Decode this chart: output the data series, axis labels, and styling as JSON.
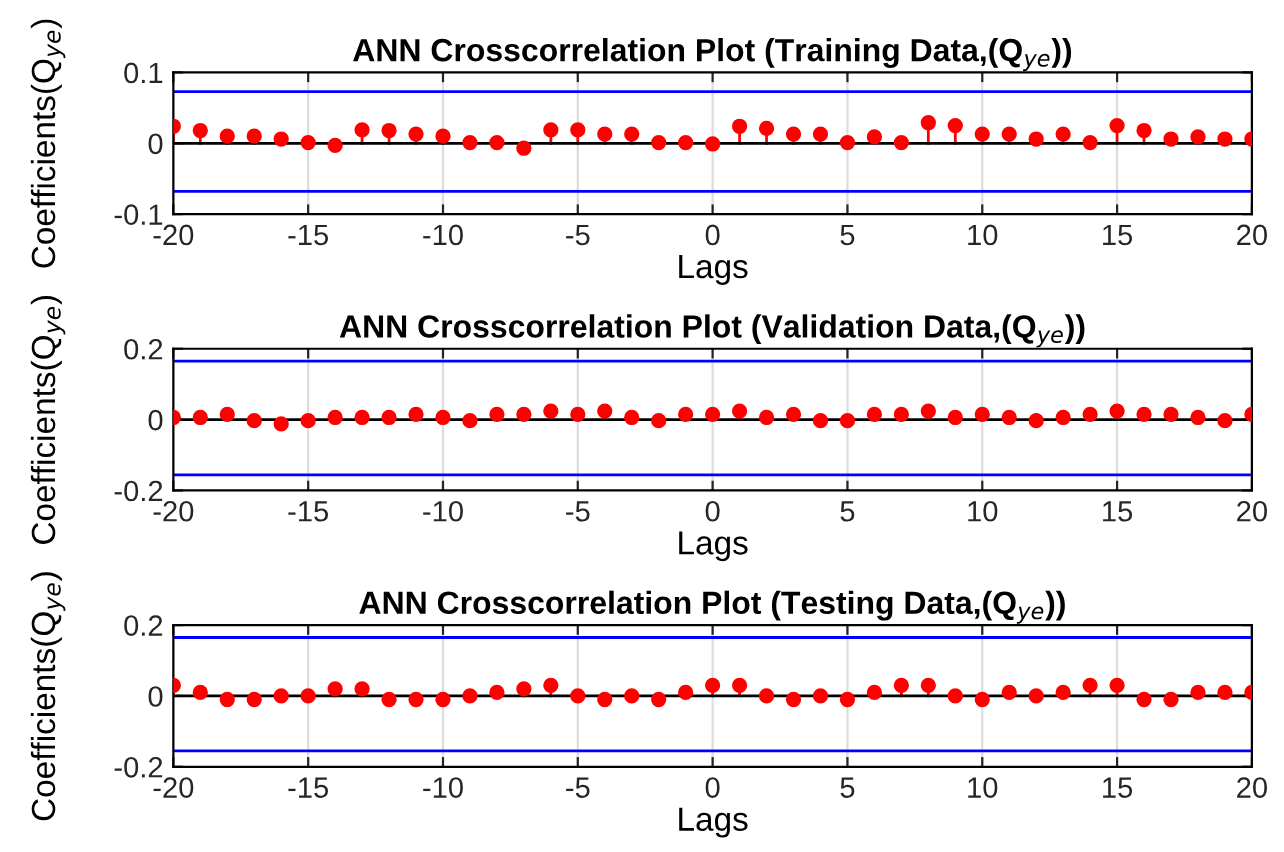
{
  "chart_data": [
    {
      "type": "lollipop",
      "title": "ANN Crosscorrelation Plot (Training Data,(Q$_{ye}$))",
      "xlabel": "Lags",
      "ylabel": "Coefficients(Q$_{ye}$)",
      "x": [
        -20,
        -19,
        -18,
        -17,
        -16,
        -15,
        -14,
        -13,
        -12,
        -11,
        -10,
        -9,
        -8,
        -7,
        -6,
        -5,
        -4,
        -3,
        -2,
        -1,
        0,
        1,
        2,
        3,
        4,
        5,
        6,
        7,
        8,
        9,
        10,
        11,
        12,
        13,
        14,
        15,
        16,
        17,
        18,
        19,
        20
      ],
      "series": [
        {
          "color": "#ff0000",
          "values": [
            0.024,
            0.018,
            0.01,
            0.01,
            0.006,
            0.001,
            -0.003,
            0.019,
            0.018,
            0.013,
            0.01,
            0.001,
            0.001,
            -0.007,
            0.019,
            0.019,
            0.013,
            0.013,
            0.001,
            0.001,
            -0.001,
            0.024,
            0.021,
            0.013,
            0.013,
            0.001,
            0.009,
            0.001,
            0.029,
            0.025,
            0.013,
            0.013,
            0.006,
            0.013,
            0.001,
            0.025,
            0.018,
            0.006,
            0.009,
            0.006,
            0.006
          ]
        }
      ],
      "xlim": [
        -20,
        20
      ],
      "xticks": [
        -20,
        -15,
        -10,
        -5,
        0,
        5,
        10,
        15,
        20
      ],
      "ylim": [
        -0.1,
        0.1
      ],
      "yticks": [
        -0.1,
        0,
        0.1
      ],
      "ref_lines": [
        {
          "axis": "y",
          "value": 0.073,
          "color": "#0000ff"
        },
        {
          "axis": "y",
          "value": -0.068,
          "color": "#0000ff"
        }
      ],
      "grid": "x",
      "marker": "circle"
    },
    {
      "type": "lollipop",
      "title": "ANN Crosscorrelation Plot (Validation Data,(Q$_{ye}$))",
      "xlabel": "Lags",
      "ylabel": "Coefficients(Q$_{ye}$)",
      "x": [
        -20,
        -19,
        -18,
        -17,
        -16,
        -15,
        -14,
        -13,
        -12,
        -11,
        -10,
        -9,
        -8,
        -7,
        -6,
        -5,
        -4,
        -3,
        -2,
        -1,
        0,
        1,
        2,
        3,
        4,
        5,
        6,
        7,
        8,
        9,
        10,
        11,
        12,
        13,
        14,
        15,
        16,
        17,
        18,
        19,
        20
      ],
      "series": [
        {
          "color": "#ff0000",
          "values": [
            0.006,
            0.006,
            0.015,
            -0.003,
            -0.012,
            -0.003,
            0.006,
            0.006,
            0.006,
            0.015,
            0.006,
            -0.003,
            0.015,
            0.015,
            0.024,
            0.015,
            0.024,
            0.006,
            -0.003,
            0.015,
            0.015,
            0.024,
            0.006,
            0.015,
            -0.003,
            -0.003,
            0.015,
            0.015,
            0.024,
            0.006,
            0.015,
            0.006,
            -0.003,
            0.006,
            0.015,
            0.024,
            0.015,
            0.015,
            0.006,
            -0.003,
            0.015
          ]
        }
      ],
      "xlim": [
        -20,
        20
      ],
      "xticks": [
        -20,
        -15,
        -10,
        -5,
        0,
        5,
        10,
        15,
        20
      ],
      "ylim": [
        -0.2,
        0.2
      ],
      "yticks": [
        -0.2,
        0,
        0.2
      ],
      "ref_lines": [
        {
          "axis": "y",
          "value": 0.165,
          "color": "#0000ff"
        },
        {
          "axis": "y",
          "value": -0.156,
          "color": "#0000ff"
        }
      ],
      "grid": "x",
      "marker": "circle"
    },
    {
      "type": "lollipop",
      "title": "ANN Crosscorrelation Plot (Testing Data,(Q$_{ye}$))",
      "xlabel": "Lags",
      "ylabel": "Coefficients(Q$_{ye}$)",
      "x": [
        -20,
        -19,
        -18,
        -17,
        -16,
        -15,
        -14,
        -13,
        -12,
        -11,
        -10,
        -9,
        -8,
        -7,
        -6,
        -5,
        -4,
        -3,
        -2,
        -1,
        0,
        1,
        2,
        3,
        4,
        5,
        6,
        7,
        8,
        9,
        10,
        11,
        12,
        13,
        14,
        15,
        16,
        17,
        18,
        19,
        20
      ],
      "series": [
        {
          "color": "#ff0000",
          "values": [
            0.03,
            0.01,
            -0.01,
            -0.01,
            0,
            0,
            0.02,
            0.02,
            -0.01,
            -0.01,
            -0.01,
            0,
            0.01,
            0.02,
            0.03,
            0,
            -0.01,
            0,
            -0.01,
            0.01,
            0.03,
            0.03,
            0,
            -0.01,
            0,
            -0.01,
            0.01,
            0.03,
            0.03,
            0,
            -0.01,
            0.01,
            0,
            0.01,
            0.03,
            0.03,
            -0.01,
            -0.01,
            0.01,
            0.01,
            0.01
          ]
        }
      ],
      "xlim": [
        -20,
        20
      ],
      "xticks": [
        -20,
        -15,
        -10,
        -5,
        0,
        5,
        10,
        15,
        20
      ],
      "ylim": [
        -0.2,
        0.2
      ],
      "yticks": [
        -0.2,
        0,
        0.2
      ],
      "ref_lines": [
        {
          "axis": "y",
          "value": 0.165,
          "color": "#0000ff"
        },
        {
          "axis": "y",
          "value": -0.155,
          "color": "#0000ff"
        }
      ],
      "grid": "x",
      "marker": "circle"
    }
  ]
}
